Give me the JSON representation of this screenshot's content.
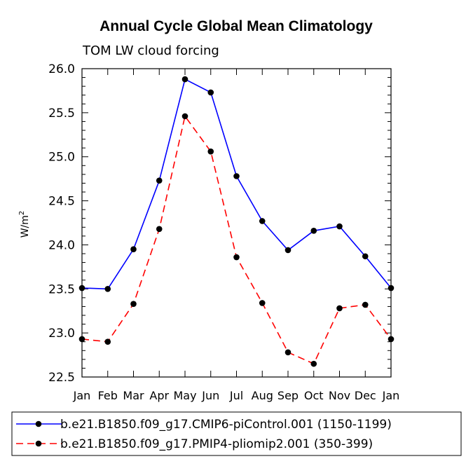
{
  "chart_data": {
    "type": "line",
    "title": "Annual Cycle Global Mean Climatology",
    "subtitle": "TOM LW cloud forcing",
    "ylabel": "W/m",
    "ylabel_sup": "2",
    "xlabel": "",
    "categories": [
      "Jan",
      "Feb",
      "Mar",
      "Apr",
      "May",
      "Jun",
      "Jul",
      "Aug",
      "Sep",
      "Oct",
      "Nov",
      "Dec",
      "Jan"
    ],
    "ylim": [
      22.5,
      26.0
    ],
    "yticks": [
      "22.5",
      "23.0",
      "23.5",
      "24.0",
      "24.5",
      "25.0",
      "25.5",
      "26.0"
    ],
    "series": [
      {
        "name": "b.e21.B1850.f09_g17.CMIP6-piControl.001 (1150-1199)",
        "color": "#0000ff",
        "style": "solid",
        "values": [
          23.51,
          23.5,
          23.95,
          24.73,
          25.88,
          25.73,
          24.78,
          24.27,
          23.94,
          24.16,
          24.21,
          23.87,
          23.51
        ]
      },
      {
        "name": "b.e21.B1850.f09_g17.PMIP4-pliomip2.001 (350-399)",
        "color": "#ff0000",
        "style": "dashed",
        "values": [
          22.93,
          22.9,
          23.33,
          24.18,
          25.46,
          25.06,
          23.86,
          23.34,
          22.78,
          22.65,
          23.28,
          23.32,
          22.93
        ]
      }
    ],
    "legend_position": "bottom"
  }
}
